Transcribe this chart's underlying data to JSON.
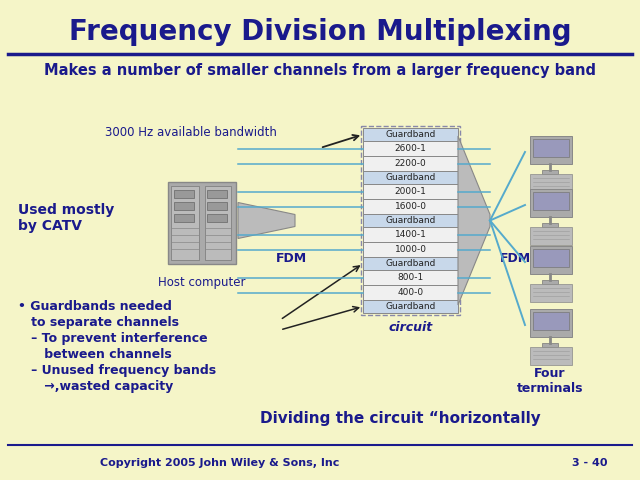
{
  "title": "Frequency Division Multiplexing",
  "subtitle": "Makes a number of smaller channels from a larger frequency band",
  "bg_color": "#f5f5c8",
  "title_color": "#1a1a8c",
  "subtitle_color": "#1a1a8c",
  "text_color": "#1a1a8c",
  "copyright": "Copyright 2005 John Wiley & Sons, Inc",
  "page": "3 - 40",
  "guardband_color": "#c8d8ea",
  "channel_color": "#f0f0f0",
  "channel_border": "#888888",
  "bands": [
    {
      "label": "Guardband",
      "is_guard": true
    },
    {
      "label": "2600-1",
      "is_guard": false
    },
    {
      "label": "2200-0",
      "is_guard": false
    },
    {
      "label": "Guardband",
      "is_guard": true
    },
    {
      "label": "2000-1",
      "is_guard": false
    },
    {
      "label": "1600-0",
      "is_guard": false
    },
    {
      "label": "Guardband",
      "is_guard": true
    },
    {
      "label": "1400-1",
      "is_guard": false
    },
    {
      "label": "1000-0",
      "is_guard": false
    },
    {
      "label": "Guardband",
      "is_guard": true
    },
    {
      "label": "800-1",
      "is_guard": false
    },
    {
      "label": "400-0",
      "is_guard": false
    },
    {
      "label": "Guardband",
      "is_guard": true
    }
  ],
  "bw_text": "3000 Hz available bandwidth",
  "used_text": "Used mostly\nby CATV",
  "host_label": "Host computer",
  "fdm_label1": "FDM",
  "fdm_label2": "FDM",
  "circuit_label": "circuit",
  "terminals_label": "Four\nterminals",
  "guard_text1": "• Guardbands needed",
  "guard_text2": "   to separate channels",
  "guard_text3": "   – To prevent interference",
  "guard_text4": "      between channels",
  "guard_text5": "   – Unused frequency bands",
  "guard_text6": "      →,wasted capacity",
  "dividing_text": "Dividing the circuit “horizontally",
  "line_color": "#1a1a8c",
  "arrow_color": "#222222",
  "connector_color": "#55aacc",
  "fdm_shape_color": "#bbbbbb",
  "fdm_shape_edge": "#888888"
}
